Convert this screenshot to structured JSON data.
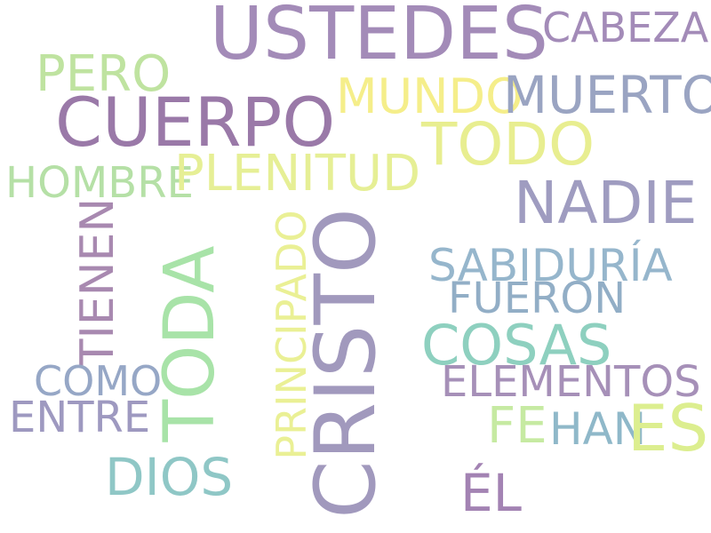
{
  "words": {
    "ustedes": {
      "text": "USTEDES",
      "color": "#a38bb8"
    },
    "cabeza": {
      "text": "CABEZA",
      "color": "#a38bb8"
    },
    "pero": {
      "text": "PERO",
      "color": "#bfe3a0"
    },
    "cuerpo": {
      "text": "CUERPO",
      "color": "#9a79a8"
    },
    "mundo": {
      "text": "MUNDO",
      "color": "#f5ee8a"
    },
    "muerto": {
      "text": "MUERTO",
      "color": "#9aa4c2"
    },
    "todo": {
      "text": "TODO",
      "color": "#e8ee90"
    },
    "hombre": {
      "text": "HOMBRE",
      "color": "#b5e0a6"
    },
    "plenitud": {
      "text": "PLENITUD",
      "color": "#e6ef95"
    },
    "nadie": {
      "text": "NADIE",
      "color": "#9f9cc0"
    },
    "tienen": {
      "text": "TIENEN",
      "color": "#a889b0"
    },
    "toda": {
      "text": "TODA",
      "color": "#a8e3a8"
    },
    "principado": {
      "text": "PRINCIPADO",
      "color": "#eaf095"
    },
    "cristo": {
      "text": "CRISTO",
      "color": "#a199bd"
    },
    "sabiduria": {
      "text": "SABIDURÍA",
      "color": "#96b6cc"
    },
    "fueron": {
      "text": "FUERON",
      "color": "#92aec6"
    },
    "cosas": {
      "text": "COSAS",
      "color": "#8ed0bf"
    },
    "como": {
      "text": "COMO",
      "color": "#96a7c6"
    },
    "entre": {
      "text": "ENTRE",
      "color": "#9e99c0"
    },
    "elementos": {
      "text": "ELEMENTOS",
      "color": "#a690b8"
    },
    "fe": {
      "text": "FE",
      "color": "#c6eaa2"
    },
    "han": {
      "text": "HAN",
      "color": "#8fb8c9"
    },
    "es": {
      "text": "ES",
      "color": "#dcee8f"
    },
    "dios": {
      "text": "DIOS",
      "color": "#8fc7c6"
    },
    "el": {
      "text": "ÉL",
      "color": "#a383b3"
    }
  }
}
